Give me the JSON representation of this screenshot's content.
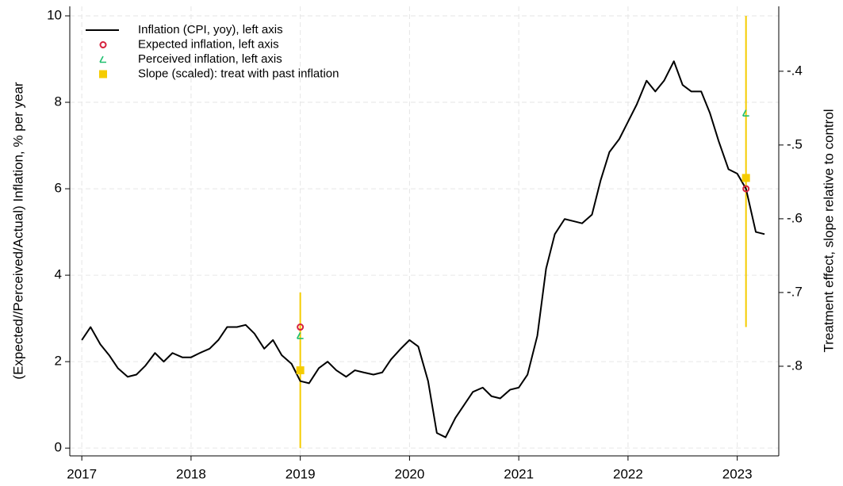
{
  "chart_data": {
    "type": "line",
    "ylabel": "(Expected//Perceived/Actual) Inflation, % per year",
    "y2label": "Treatment effect, slope relative to control",
    "xlim": [
      2016.89,
      2023.38
    ],
    "xticks": [
      2017,
      2018,
      2019,
      2020,
      2021,
      2022,
      2023
    ],
    "ylim": [
      -0.18,
      10.22
    ],
    "yticks": [
      0,
      2,
      4,
      6,
      8,
      10
    ],
    "y2lim": [
      -0.9215,
      -0.312
    ],
    "y2ticks": [
      {
        "value": -0.4,
        "label": "-.4"
      },
      {
        "value": -0.5,
        "label": "-.5"
      },
      {
        "value": -0.6,
        "label": "-.6"
      },
      {
        "value": -0.7,
        "label": "-.7"
      },
      {
        "value": -0.8,
        "label": "-.8"
      }
    ],
    "grid": true,
    "legend": "upper left",
    "series": [
      {
        "name": "Inflation (CPI, yoy), left axis",
        "color": "#000000",
        "marker": "line",
        "x": [
          2017,
          2017.08,
          2017.17,
          2017.25,
          2017.33,
          2017.42,
          2017.5,
          2017.58,
          2017.67,
          2017.75,
          2017.83,
          2017.92,
          2018,
          2018.08,
          2018.17,
          2018.25,
          2018.33,
          2018.42,
          2018.5,
          2018.58,
          2018.67,
          2018.75,
          2018.83,
          2018.92,
          2019,
          2019.08,
          2019.17,
          2019.25,
          2019.33,
          2019.42,
          2019.5,
          2019.58,
          2019.67,
          2019.75,
          2019.83,
          2019.92,
          2020,
          2020.08,
          2020.17,
          2020.25,
          2020.33,
          2020.42,
          2020.5,
          2020.58,
          2020.67,
          2020.75,
          2020.83,
          2020.92,
          2021,
          2021.08,
          2021.17,
          2021.25,
          2021.33,
          2021.42,
          2021.5,
          2021.58,
          2021.67,
          2021.75,
          2021.83,
          2021.92,
          2022,
          2022.08,
          2022.17,
          2022.25,
          2022.33,
          2022.42,
          2022.5,
          2022.58,
          2022.67,
          2022.75,
          2022.83,
          2022.92,
          2023,
          2023.08,
          2023.17,
          2023.25
        ],
        "values": [
          2.5,
          2.8,
          2.4,
          2.15,
          1.85,
          1.65,
          1.7,
          1.9,
          2.2,
          2.0,
          2.2,
          2.1,
          2.1,
          2.2,
          2.3,
          2.5,
          2.8,
          2.8,
          2.85,
          2.65,
          2.3,
          2.5,
          2.15,
          1.95,
          1.55,
          1.5,
          1.85,
          2.0,
          1.8,
          1.65,
          1.8,
          1.75,
          1.7,
          1.75,
          2.05,
          2.3,
          2.5,
          2.35,
          1.55,
          0.35,
          0.25,
          0.7,
          1.0,
          1.3,
          1.4,
          1.2,
          1.15,
          1.35,
          1.4,
          1.7,
          2.6,
          4.15,
          4.95,
          5.3,
          5.25,
          5.2,
          5.4,
          6.2,
          6.85,
          7.15,
          7.55,
          7.95,
          8.5,
          8.25,
          8.5,
          8.95,
          8.4,
          8.25,
          8.25,
          7.75,
          7.1,
          6.45,
          6.35,
          6.0,
          5.0,
          4.95
        ]
      },
      {
        "name": "Expected inflation, left axis",
        "color": "#d6213c",
        "marker": "circle",
        "x": [
          2019,
          2023.08
        ],
        "values": [
          2.8,
          6.0
        ]
      },
      {
        "name": "Perceived inflation, left axis",
        "color": "#1fbf6f",
        "marker": "triangle",
        "x": [
          2019,
          2023.08
        ],
        "values": [
          2.6,
          7.75
        ]
      },
      {
        "name": "Slope (scaled): treat with past inflation",
        "color": "#f5cc00",
        "marker": "square",
        "x": [
          2019,
          2023.08
        ],
        "values": [
          1.8,
          6.25
        ],
        "low": [
          0,
          2.8
        ],
        "high": [
          3.6,
          10
        ]
      }
    ]
  }
}
